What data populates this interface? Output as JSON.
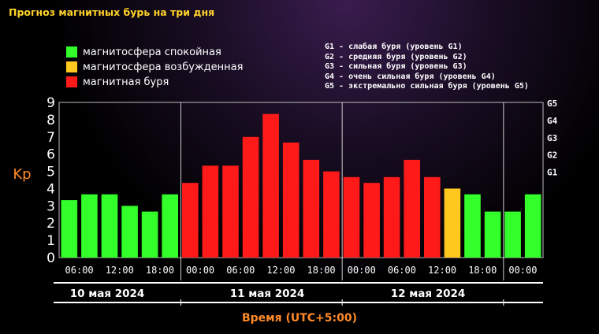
{
  "page_title": "Прогноз магнитных бурь на три дня",
  "legend": [
    {
      "label": "магнитосфера спокойная",
      "color": "#33ff2a"
    },
    {
      "label": "магнитосфера возбужденная",
      "color": "#ffc81e"
    },
    {
      "label": "магнитная буря",
      "color": "#ff1a1a"
    }
  ],
  "storm_levels": [
    "G1 - слабая буря (уровень G1)",
    "G2 - средняя буря (уровень G2)",
    "G3 - сильная буря (уровень G3)",
    "G4 - очень сильная буря (уровень G4)",
    "G5 - экстремально сильная буря (уровень G5)"
  ],
  "chart_data": {
    "type": "bar",
    "ylabel": "Kp",
    "xlabel": "Время (UTC+5:00)",
    "ylim": [
      0,
      9
    ],
    "y_ticks": [
      "0",
      "1",
      "2",
      "3",
      "4",
      "5",
      "6",
      "7",
      "8",
      "9"
    ],
    "right_ticks": [
      {
        "label": "G1",
        "value": 5
      },
      {
        "label": "G2",
        "value": 6
      },
      {
        "label": "G3",
        "value": 7
      },
      {
        "label": "G4",
        "value": 8
      },
      {
        "label": "G5",
        "value": 9
      }
    ],
    "values": [
      3.33,
      3.67,
      3.67,
      3.0,
      2.67,
      3.67,
      4.33,
      5.33,
      5.33,
      7.0,
      8.33,
      6.67,
      5.67,
      5.0,
      4.67,
      4.33,
      4.67,
      5.67,
      4.67,
      4.0,
      3.67,
      2.67,
      2.67,
      3.67
    ],
    "status": [
      "quiet",
      "quiet",
      "quiet",
      "quiet",
      "quiet",
      "quiet",
      "storm",
      "storm",
      "storm",
      "storm",
      "storm",
      "storm",
      "storm",
      "storm",
      "storm",
      "storm",
      "storm",
      "storm",
      "storm",
      "active",
      "quiet",
      "quiet",
      "quiet",
      "quiet"
    ],
    "colors": {
      "quiet": "#33ff2a",
      "active": "#ffc81e",
      "storm": "#ff1a1a"
    },
    "x_tick_labels": [
      "06:00",
      "12:00",
      "18:00",
      "00:00",
      "06:00",
      "12:00",
      "18:00",
      "00:00",
      "06:00",
      "12:00",
      "18:00",
      "00:00"
    ],
    "days": [
      "10 мая 2024",
      "11 мая 2024",
      "12 мая 2024"
    ],
    "grid": "vertical day separators"
  }
}
